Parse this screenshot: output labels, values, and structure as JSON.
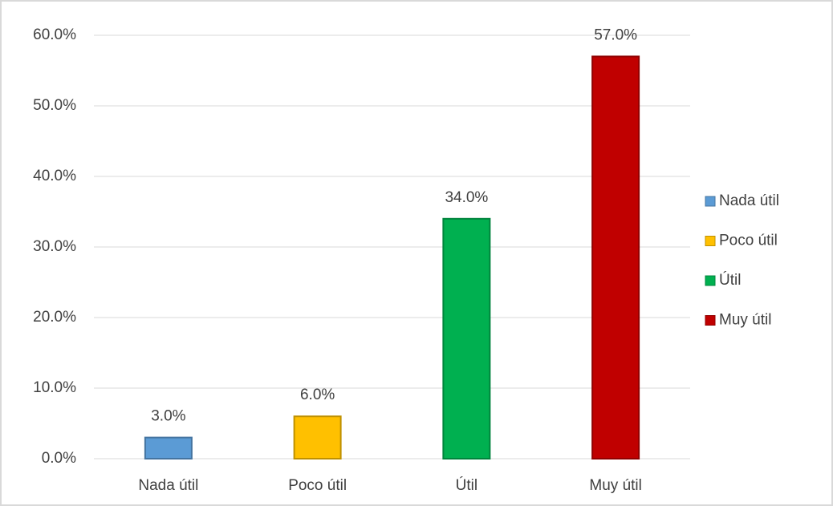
{
  "chart_data": {
    "type": "bar",
    "categories": [
      "Nada útil",
      "Poco útil",
      "Útil",
      "Muy útil"
    ],
    "values": [
      3,
      6,
      34,
      57
    ],
    "value_labels": [
      "3.0%",
      "6.0%",
      "34.0%",
      "57.0%"
    ],
    "colors": [
      "#5b9bd5",
      "#ffc000",
      "#00b050",
      "#c00000"
    ],
    "ylim": [
      0,
      60
    ],
    "yticks": [
      {
        "value": 0,
        "label": "0.0%"
      },
      {
        "value": 10,
        "label": "10.0%"
      },
      {
        "value": 20,
        "label": "20.0%"
      },
      {
        "value": 30,
        "label": "30.0%"
      },
      {
        "value": 40,
        "label": "40.0%"
      },
      {
        "value": 50,
        "label": "50.0%"
      },
      {
        "value": 60,
        "label": "60.0%"
      }
    ],
    "grid": true,
    "legend": "right"
  }
}
